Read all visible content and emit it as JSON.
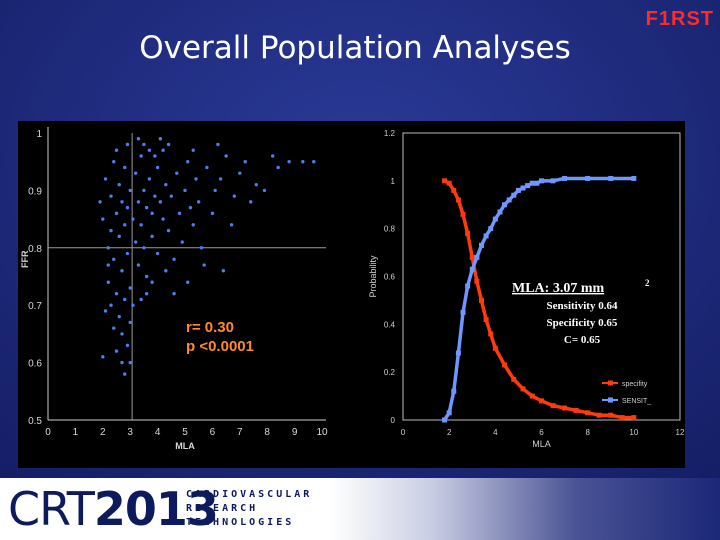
{
  "slide": {
    "title": "Overall Population Analyses",
    "logo_text": "F1RST",
    "colors": {
      "background": "#1b2778",
      "logo": "#ff2a2a",
      "scatter_points": "#4f7cf0",
      "specificity": "#ff3a0f",
      "sensitivity": "#6f97ff"
    }
  },
  "footer": {
    "logo_crt": "CRT",
    "logo_year": "2013",
    "words": [
      "CARDIOVASCULAR",
      "RESEARCH",
      "TECHNOLOGIES"
    ]
  },
  "chart_data": [
    {
      "type": "scatter",
      "xlabel": "MLA",
      "ylabel": "FFR",
      "xlim": [
        0,
        10
      ],
      "ylim": [
        0.5,
        1.0
      ],
      "xticks": [
        0,
        1,
        2,
        3,
        4,
        5,
        6,
        7,
        8,
        9,
        10
      ],
      "yticks": [
        0.5,
        0.6,
        0.7,
        0.8,
        0.9,
        1
      ],
      "reference_lines": {
        "x": 3.07,
        "y": 0.8
      },
      "annotation": [
        "r= 0.30",
        "p <0.0001"
      ],
      "points": [
        [
          1.9,
          0.88
        ],
        [
          2.0,
          0.85
        ],
        [
          2.1,
          0.92
        ],
        [
          2.2,
          0.8
        ],
        [
          2.2,
          0.74
        ],
        [
          2.3,
          0.89
        ],
        [
          2.3,
          0.83
        ],
        [
          2.4,
          0.95
        ],
        [
          2.4,
          0.78
        ],
        [
          2.5,
          0.86
        ],
        [
          2.5,
          0.72
        ],
        [
          2.6,
          0.91
        ],
        [
          2.6,
          0.82
        ],
        [
          2.7,
          0.88
        ],
        [
          2.7,
          0.76
        ],
        [
          2.8,
          0.94
        ],
        [
          2.8,
          0.84
        ],
        [
          2.9,
          0.79
        ],
        [
          2.9,
          0.87
        ],
        [
          3.0,
          0.9
        ],
        [
          3.0,
          0.73
        ],
        [
          3.1,
          0.85
        ],
        [
          3.2,
          0.93
        ],
        [
          3.2,
          0.81
        ],
        [
          3.3,
          0.88
        ],
        [
          3.3,
          0.77
        ],
        [
          3.4,
          0.96
        ],
        [
          3.4,
          0.84
        ],
        [
          3.5,
          0.9
        ],
        [
          3.5,
          0.8
        ],
        [
          3.6,
          0.87
        ],
        [
          3.6,
          0.75
        ],
        [
          3.7,
          0.92
        ],
        [
          3.8,
          0.86
        ],
        [
          3.8,
          0.82
        ],
        [
          3.9,
          0.89
        ],
        [
          4.0,
          0.94
        ],
        [
          4.0,
          0.79
        ],
        [
          4.1,
          0.88
        ],
        [
          4.2,
          0.85
        ],
        [
          4.2,
          0.97
        ],
        [
          4.3,
          0.91
        ],
        [
          4.4,
          0.83
        ],
        [
          4.5,
          0.89
        ],
        [
          4.6,
          0.78
        ],
        [
          4.7,
          0.93
        ],
        [
          4.8,
          0.86
        ],
        [
          4.9,
          0.81
        ],
        [
          5.0,
          0.9
        ],
        [
          5.1,
          0.95
        ],
        [
          5.2,
          0.87
        ],
        [
          5.3,
          0.84
        ],
        [
          5.4,
          0.92
        ],
        [
          5.5,
          0.88
        ],
        [
          5.6,
          0.8
        ],
        [
          5.8,
          0.94
        ],
        [
          6.0,
          0.86
        ],
        [
          6.1,
          0.9
        ],
        [
          6.3,
          0.92
        ],
        [
          6.5,
          0.96
        ],
        [
          6.7,
          0.84
        ],
        [
          6.8,
          0.89
        ],
        [
          7.0,
          0.93
        ],
        [
          7.2,
          0.95
        ],
        [
          7.4,
          0.88
        ],
        [
          7.6,
          0.91
        ],
        [
          7.9,
          0.9
        ],
        [
          8.2,
          0.96
        ],
        [
          8.4,
          0.94
        ],
        [
          8.8,
          0.95
        ],
        [
          9.3,
          0.95
        ],
        [
          9.7,
          0.95
        ],
        [
          2.1,
          0.69
        ],
        [
          2.3,
          0.7
        ],
        [
          2.4,
          0.66
        ],
        [
          2.6,
          0.68
        ],
        [
          2.7,
          0.65
        ],
        [
          2.8,
          0.71
        ],
        [
          2.9,
          0.63
        ],
        [
          3.0,
          0.67
        ],
        [
          2.0,
          0.61
        ],
        [
          2.5,
          0.62
        ],
        [
          2.7,
          0.6
        ],
        [
          2.8,
          0.58
        ],
        [
          3.0,
          0.6
        ],
        [
          3.4,
          0.71
        ],
        [
          3.6,
          0.72
        ],
        [
          4.3,
          0.76
        ],
        [
          5.1,
          0.74
        ],
        [
          6.4,
          0.76
        ],
        [
          2.2,
          0.77
        ],
        [
          3.1,
          0.7
        ],
        [
          3.8,
          0.74
        ],
        [
          4.6,
          0.72
        ],
        [
          5.7,
          0.77
        ],
        [
          2.9,
          0.98
        ],
        [
          3.3,
          0.99
        ],
        [
          3.7,
          0.97
        ],
        [
          4.1,
          0.99
        ],
        [
          2.5,
          0.97
        ],
        [
          3.9,
          0.96
        ],
        [
          4.4,
          0.98
        ],
        [
          5.3,
          0.97
        ],
        [
          6.2,
          0.98
        ],
        [
          3.5,
          0.98
        ]
      ]
    },
    {
      "type": "line",
      "xlabel": "MLA",
      "ylabel": "Probability",
      "xlim": [
        0,
        12
      ],
      "ylim": [
        0,
        1.2
      ],
      "xticks": [
        0,
        2,
        4,
        6,
        8,
        10,
        12
      ],
      "yticks": [
        0,
        0.2,
        0.4,
        0.6,
        0.8,
        1,
        1.2
      ],
      "annotation": {
        "cutoff": "MLA: 3.07 mm",
        "superscript": "2",
        "sensitivity": "Sensitivity 0.64",
        "specificity": "Specificity 0.65",
        "c_statistic": "C= 0.65"
      },
      "legend": [
        "specifity",
        "SENSIT_"
      ],
      "series": [
        {
          "name": "specifity",
          "x": [
            1.8,
            2.0,
            2.2,
            2.4,
            2.6,
            2.8,
            3.0,
            3.2,
            3.4,
            3.6,
            3.8,
            4.0,
            4.4,
            4.8,
            5.2,
            5.6,
            6.0,
            6.5,
            7.0,
            7.5,
            8.0,
            8.5,
            9.0,
            9.5,
            10.0
          ],
          "y": [
            1.0,
            0.99,
            0.96,
            0.92,
            0.86,
            0.78,
            0.68,
            0.58,
            0.5,
            0.42,
            0.36,
            0.3,
            0.23,
            0.17,
            0.13,
            0.1,
            0.08,
            0.06,
            0.05,
            0.04,
            0.03,
            0.02,
            0.02,
            0.01,
            0.01
          ]
        },
        {
          "name": "SENSIT_",
          "x": [
            1.8,
            2.0,
            2.2,
            2.4,
            2.6,
            2.8,
            3.0,
            3.2,
            3.4,
            3.6,
            3.8,
            4.0,
            4.2,
            4.4,
            4.6,
            4.8,
            5.0,
            5.2,
            5.4,
            5.6,
            5.8,
            6.0,
            6.5,
            7.0,
            8.0,
            9.0,
            10.0
          ],
          "y": [
            0.0,
            0.03,
            0.12,
            0.28,
            0.45,
            0.56,
            0.63,
            0.68,
            0.73,
            0.77,
            0.8,
            0.84,
            0.87,
            0.9,
            0.92,
            0.94,
            0.96,
            0.97,
            0.98,
            0.99,
            0.99,
            1.0,
            1.0,
            1.01,
            1.01,
            1.01,
            1.01
          ]
        }
      ]
    }
  ]
}
